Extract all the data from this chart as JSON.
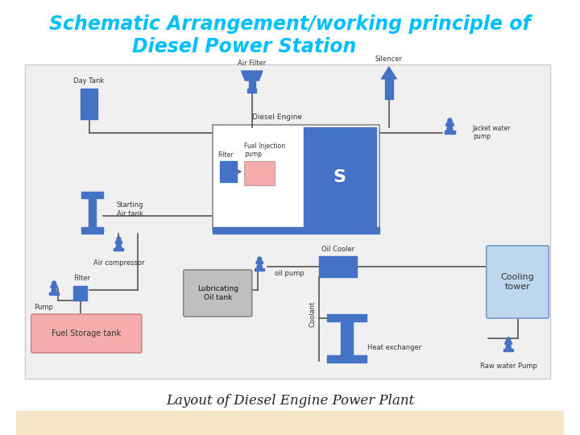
{
  "title_line1": "Schematic Arrangement/working principle of",
  "title_line2": "Diesel Power Station",
  "title_color": "#00BFFF",
  "title_fontsize": 17,
  "subtitle": "Layout of Diesel Engine Power Plant",
  "subtitle_fontsize": 12,
  "bg_color": "#FFFFFF",
  "diagram_bg": "#F2F2F2",
  "blue": "#4472C4",
  "light_blue_box": "#BDD7EE",
  "pink": "#F4ACAC",
  "gray": "#BFBFBF",
  "tan": "#F5E6C8",
  "lc": "#555555",
  "lw": 1.2
}
